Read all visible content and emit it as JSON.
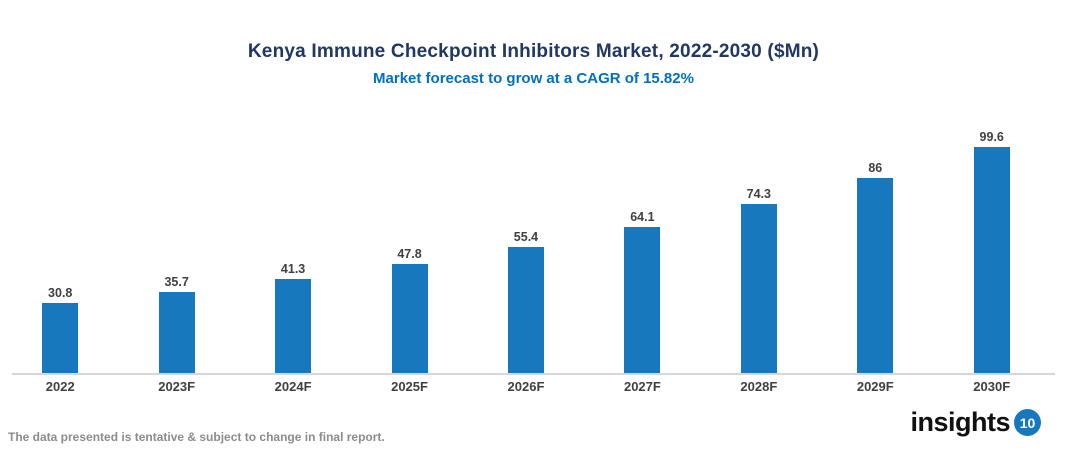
{
  "chart_data": {
    "type": "bar",
    "title": "Kenya Immune Checkpoint Inhibitors Market, 2022-2030 ($Mn)",
    "subtitle": "Market forecast to grow at a CAGR of 15.82%",
    "categories": [
      "2022",
      "2023F",
      "2024F",
      "2025F",
      "2026F",
      "2027F",
      "2028F",
      "2029F",
      "2030F"
    ],
    "values": [
      30.8,
      35.7,
      41.3,
      47.8,
      55.4,
      64.1,
      74.3,
      86,
      99.6
    ],
    "value_labels": [
      "30.8",
      "35.7",
      "41.3",
      "47.8",
      "55.4",
      "64.1",
      "74.3",
      "86",
      "99.6"
    ],
    "xlabel": "",
    "ylabel": "",
    "ylim": [
      0,
      110
    ],
    "grid": false,
    "legend": false,
    "data_label_position": "above-bars",
    "bar_color": "#1878BE"
  },
  "footer": {
    "disclaimer": "The data presented is tentative & subject to change in final report."
  },
  "logo": {
    "text": "insights",
    "badge": "10",
    "badge_color": "#1778BE"
  },
  "colors": {
    "title": "#1F3864",
    "subtitle": "#0070C0",
    "data_label": "#404040",
    "axis_label": "#404040",
    "axis_line": "#D6D6D6",
    "disclaimer": "#8C8C8C",
    "background": "#FFFFFF"
  }
}
